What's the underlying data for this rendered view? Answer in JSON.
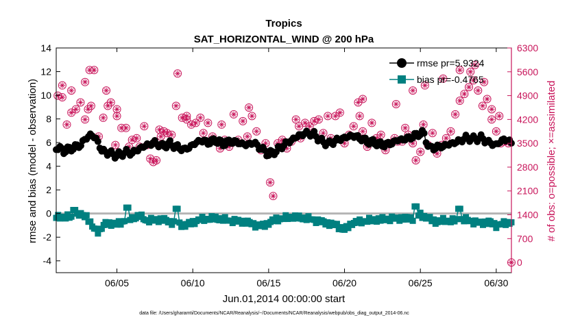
{
  "chart_data": {
    "type": "scatter",
    "title": "Tropics",
    "subtitle": "SAT_HORIZONTAL_WIND @ 200 hPa",
    "xlabel": "Jun.01,2014 00:00:00 start",
    "ylabel": "rmse and bias (model - observation)",
    "y2label": "# of obs: o=possible; ×=assimilated",
    "xlim": [
      1,
      31
    ],
    "ylim": [
      -5,
      14
    ],
    "y2lim": [
      -300,
      6300
    ],
    "xticks": [
      5,
      10,
      15,
      20,
      25,
      30
    ],
    "xtick_labels": [
      "06/05",
      "06/10",
      "06/15",
      "06/20",
      "06/25",
      "06/30"
    ],
    "yticks": [
      -4,
      -2,
      0,
      2,
      4,
      6,
      8,
      10,
      12,
      14
    ],
    "y2ticks": [
      0,
      700,
      1400,
      2100,
      2800,
      3500,
      4200,
      4900,
      5600,
      6300
    ],
    "zero_line": 0,
    "footnote": "data file: /Users/gharamti/Documents/NCAR/Reanalysis/~/Documents/NCAR/Reanalysis/webpub/obs_diag_output_2014-06.nc",
    "legend": [
      {
        "label": "rmse pr=5.9324",
        "marker": "circle"
      },
      {
        "label": "bias pr=-0.4765",
        "marker": "square"
      }
    ],
    "colors": {
      "rmse": "#000000",
      "bias": "#008080",
      "obs": "#c8145a",
      "zero": "#b4b4b4"
    },
    "rmse_knots": [
      [
        1.0,
        5.6
      ],
      [
        1.5,
        5.3
      ],
      [
        2.0,
        5.5
      ],
      [
        2.6,
        5.8
      ],
      [
        3.0,
        6.4
      ],
      [
        3.3,
        6.7
      ],
      [
        3.7,
        6.2
      ],
      [
        4.0,
        5.3
      ],
      [
        4.5,
        5.1
      ],
      [
        5.0,
        4.9
      ],
      [
        5.6,
        5.2
      ],
      [
        6.0,
        5.1
      ],
      [
        6.5,
        5.5
      ],
      [
        7.0,
        5.8
      ],
      [
        7.5,
        6.0
      ],
      [
        8.0,
        5.7
      ],
      [
        8.5,
        5.9
      ],
      [
        9.0,
        5.6
      ],
      [
        9.5,
        5.4
      ],
      [
        10.0,
        5.8
      ],
      [
        10.5,
        6.2
      ],
      [
        11.0,
        6.0
      ],
      [
        11.5,
        6.2
      ],
      [
        12.0,
        5.9
      ],
      [
        12.5,
        6.1
      ],
      [
        13.0,
        6.0
      ],
      [
        13.5,
        5.8
      ],
      [
        14.0,
        6.0
      ],
      [
        14.5,
        5.5
      ],
      [
        15.0,
        5.0
      ],
      [
        15.5,
        5.3
      ],
      [
        16.0,
        5.8
      ],
      [
        16.5,
        6.2
      ],
      [
        17.0,
        6.6
      ],
      [
        17.5,
        6.8
      ],
      [
        18.0,
        6.7
      ],
      [
        18.5,
        6.1
      ],
      [
        19.0,
        5.9
      ],
      [
        19.5,
        6.2
      ],
      [
        20.0,
        6.4
      ],
      [
        20.5,
        6.6
      ],
      [
        21.0,
        6.4
      ],
      [
        21.5,
        6.1
      ],
      [
        22.0,
        6.0
      ],
      [
        22.5,
        5.8
      ],
      [
        23.0,
        5.9
      ],
      [
        23.5,
        6.2
      ],
      [
        24.0,
        6.3
      ],
      [
        24.5,
        6.5
      ],
      [
        25.0,
        6.8
      ],
      [
        25.2,
        6.8
      ],
      [
        25.6,
        5.5
      ],
      [
        26.0,
        5.6
      ],
      [
        26.5,
        5.7
      ],
      [
        27.0,
        5.9
      ],
      [
        27.5,
        6.1
      ],
      [
        28.0,
        6.4
      ],
      [
        28.5,
        6.3
      ],
      [
        29.0,
        6.4
      ],
      [
        29.5,
        6.0
      ],
      [
        30.0,
        5.8
      ],
      [
        30.5,
        6.3
      ],
      [
        31.0,
        6.0
      ]
    ],
    "bias_knots": [
      [
        1.0,
        -0.3
      ],
      [
        2.0,
        -0.3
      ],
      [
        2.5,
        -0.1
      ],
      [
        3.0,
        -0.2
      ],
      [
        3.4,
        -1.2
      ],
      [
        3.8,
        -1.5
      ],
      [
        4.3,
        -0.8
      ],
      [
        5.0,
        -0.9
      ],
      [
        5.5,
        -0.6
      ],
      [
        6.0,
        -0.4
      ],
      [
        6.5,
        -0.2
      ],
      [
        7.0,
        -0.6
      ],
      [
        8.0,
        -0.5
      ],
      [
        8.5,
        -0.7
      ],
      [
        9.5,
        -1.0
      ],
      [
        10.5,
        -0.5
      ],
      [
        11.5,
        -0.4
      ],
      [
        12.5,
        -0.6
      ],
      [
        13.5,
        -0.7
      ],
      [
        14.5,
        -1.1
      ],
      [
        15.0,
        -0.8
      ],
      [
        15.5,
        -0.5
      ],
      [
        16.5,
        -0.3
      ],
      [
        17.5,
        -0.4
      ],
      [
        18.5,
        -0.7
      ],
      [
        19.5,
        -1.0
      ],
      [
        20.0,
        -1.4
      ],
      [
        20.5,
        -0.8
      ],
      [
        21.5,
        -0.6
      ],
      [
        22.5,
        -0.5
      ],
      [
        23.5,
        -0.4
      ],
      [
        24.5,
        -0.4
      ],
      [
        25.0,
        -0.1
      ],
      [
        25.5,
        -0.4
      ],
      [
        26.0,
        -0.7
      ],
      [
        26.5,
        -0.6
      ],
      [
        27.5,
        -0.6
      ],
      [
        28.0,
        -0.5
      ],
      [
        28.5,
        -0.7
      ],
      [
        29.0,
        -0.8
      ],
      [
        29.5,
        -0.7
      ],
      [
        30.0,
        -1.0
      ],
      [
        31.0,
        -0.7
      ]
    ],
    "bias_spikes": [
      [
        2.2,
        0.3
      ],
      [
        5.7,
        0.5
      ],
      [
        8.9,
        0.4
      ],
      [
        24.7,
        0.6
      ],
      [
        27.6,
        0.4
      ]
    ],
    "obs_possible": [
      [
        1.1,
        4900
      ],
      [
        1.4,
        4850
      ],
      [
        1.7,
        4050
      ],
      [
        2.0,
        4400
      ],
      [
        2.3,
        4500
      ],
      [
        2.6,
        4700
      ],
      [
        2.9,
        4200
      ],
      [
        3.1,
        4500
      ],
      [
        3.3,
        4600
      ],
      [
        3.5,
        5650
      ],
      [
        3.8,
        3700
      ],
      [
        4.1,
        4250
      ],
      [
        4.4,
        4600
      ],
      [
        4.6,
        4700
      ],
      [
        4.9,
        3450
      ],
      [
        5.0,
        4300
      ],
      [
        5.3,
        3950
      ],
      [
        5.6,
        3950
      ],
      [
        5.8,
        3400
      ],
      [
        6.0,
        3600
      ],
      [
        6.3,
        3650
      ],
      [
        6.5,
        3400
      ],
      [
        6.8,
        4000
      ],
      [
        7.0,
        3450
      ],
      [
        7.2,
        3050
      ],
      [
        7.4,
        2950
      ],
      [
        7.6,
        3000
      ],
      [
        7.9,
        3700
      ],
      [
        8.1,
        3850
      ],
      [
        8.3,
        3800
      ],
      [
        8.6,
        3750
      ],
      [
        8.9,
        4600
      ],
      [
        9.0,
        5550
      ],
      [
        9.3,
        4250
      ],
      [
        9.6,
        4200
      ],
      [
        9.9,
        4050
      ],
      [
        10.2,
        4100
      ],
      [
        10.5,
        4250
      ],
      [
        10.7,
        3800
      ],
      [
        11.0,
        4100
      ],
      [
        11.3,
        3700
      ],
      [
        11.6,
        3550
      ],
      [
        11.8,
        3350
      ],
      [
        12.1,
        3600
      ],
      [
        12.4,
        3400
      ],
      [
        12.7,
        4350
      ],
      [
        13.0,
        3600
      ],
      [
        13.3,
        4150
      ],
      [
        13.6,
        3700
      ],
      [
        13.9,
        4300
      ],
      [
        14.2,
        3850
      ],
      [
        14.5,
        3300
      ],
      [
        14.8,
        3500
      ],
      [
        15.1,
        2350
      ],
      [
        15.3,
        1950
      ],
      [
        15.6,
        3500
      ],
      [
        15.9,
        3600
      ],
      [
        16.2,
        3350
      ],
      [
        16.5,
        3550
      ],
      [
        16.8,
        4200
      ],
      [
        17.1,
        3650
      ],
      [
        17.4,
        4100
      ],
      [
        17.7,
        4000
      ],
      [
        18.0,
        4150
      ],
      [
        18.3,
        4200
      ],
      [
        18.6,
        3800
      ],
      [
        18.9,
        4300
      ],
      [
        19.1,
        3650
      ],
      [
        19.4,
        4300
      ],
      [
        19.7,
        4400
      ],
      [
        20.0,
        3500
      ],
      [
        20.3,
        3750
      ],
      [
        20.6,
        4000
      ],
      [
        20.9,
        4700
      ],
      [
        21.0,
        4300
      ],
      [
        21.2,
        3850
      ],
      [
        21.5,
        3400
      ],
      [
        21.8,
        4100
      ],
      [
        22.1,
        3650
      ],
      [
        22.4,
        3750
      ],
      [
        22.7,
        3300
      ],
      [
        23.0,
        3500
      ],
      [
        23.3,
        3650
      ],
      [
        23.5,
        3550
      ],
      [
        23.8,
        3550
      ],
      [
        24.0,
        3950
      ],
      [
        24.2,
        3750
      ],
      [
        24.5,
        3500
      ],
      [
        24.7,
        3000
      ],
      [
        25.0,
        3250
      ],
      [
        25.2,
        4050
      ],
      [
        25.5,
        3450
      ],
      [
        25.8,
        3800
      ],
      [
        26.1,
        3200
      ],
      [
        26.4,
        3450
      ],
      [
        26.7,
        3650
      ],
      [
        27.0,
        3850
      ],
      [
        27.3,
        4350
      ],
      [
        27.6,
        4750
      ],
      [
        27.9,
        4950
      ],
      [
        28.2,
        5150
      ],
      [
        28.5,
        5350
      ],
      [
        28.8,
        5050
      ],
      [
        29.1,
        4600
      ],
      [
        29.4,
        4800
      ],
      [
        29.7,
        4200
      ],
      [
        30.0,
        3850
      ],
      [
        30.3,
        3500
      ],
      [
        30.5,
        3550
      ],
      [
        30.8,
        3500
      ],
      [
        31.0,
        0
      ]
    ],
    "obs_possible_extra": [
      [
        1.4,
        5200
      ],
      [
        2.0,
        5050
      ],
      [
        2.9,
        5300
      ],
      [
        3.2,
        5650
      ],
      [
        4.3,
        5050
      ],
      [
        5.0,
        4500
      ],
      [
        7.8,
        3900
      ],
      [
        9.6,
        4300
      ],
      [
        11.9,
        4050
      ],
      [
        13.7,
        4550
      ],
      [
        17.0,
        4000
      ],
      [
        21.2,
        4800
      ],
      [
        23.4,
        4650
      ],
      [
        24.5,
        5050
      ],
      [
        25.3,
        5200
      ],
      [
        26.5,
        5400
      ],
      [
        27.6,
        5650
      ],
      [
        28.3,
        5600
      ],
      [
        28.6,
        5800
      ],
      [
        29.2,
        5300
      ],
      [
        29.7,
        4500
      ],
      [
        30.2,
        4300
      ]
    ]
  }
}
